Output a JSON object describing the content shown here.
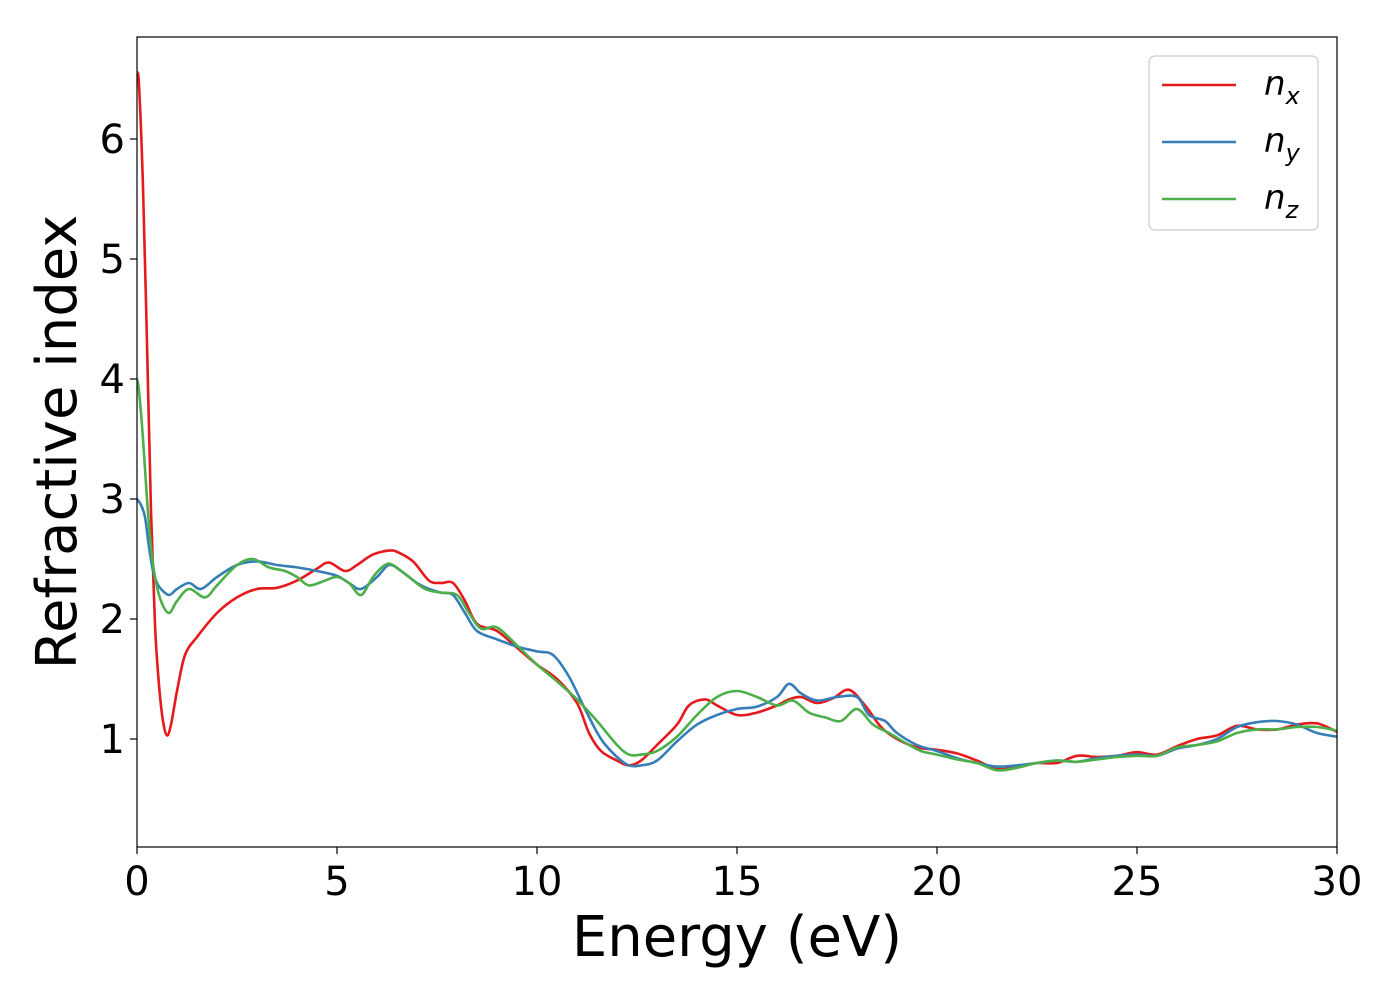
{
  "chart_data": {
    "type": "line",
    "xlabel": "Energy (eV)",
    "ylabel": "Refractive index",
    "xlim": [
      0,
      30
    ],
    "ylim": [
      0.1,
      6.85
    ],
    "xticks": [
      0,
      5,
      10,
      15,
      20,
      25,
      30
    ],
    "yticks": [
      1,
      2,
      3,
      4,
      5,
      6
    ],
    "xtick_labels": [
      "0",
      "5",
      "10",
      "15",
      "20",
      "25",
      "30"
    ],
    "ytick_labels": [
      "1",
      "2",
      "3",
      "4",
      "5",
      "6"
    ],
    "grid": false,
    "legend_position": "top-right",
    "series": [
      {
        "name": "n_x",
        "label_main": "n",
        "label_sub": "x",
        "color": "#e41a1c",
        "x": [
          0,
          0.05,
          0.15,
          0.25,
          0.35,
          0.45,
          0.55,
          0.65,
          0.75,
          0.85,
          1.0,
          1.2,
          1.5,
          2.0,
          2.5,
          3.0,
          3.5,
          4.0,
          4.5,
          4.8,
          5.2,
          5.5,
          5.8,
          6.0,
          6.3,
          6.5,
          6.9,
          7.3,
          7.6,
          7.9,
          8.2,
          8.5,
          9.0,
          9.5,
          10.0,
          10.5,
          11.0,
          11.3,
          11.6,
          12.0,
          12.3,
          12.6,
          13.0,
          13.5,
          13.8,
          14.2,
          14.5,
          15.0,
          15.5,
          16.0,
          16.3,
          16.6,
          17.0,
          17.4,
          17.8,
          18.2,
          18.6,
          19.0,
          19.5,
          20.0,
          20.5,
          21.0,
          21.5,
          22.0,
          22.5,
          23.0,
          23.5,
          24.0,
          24.5,
          25.0,
          25.5,
          26.0,
          26.5,
          27.0,
          27.5,
          28.0,
          28.5,
          29.0,
          29.5,
          30.0
        ],
        "values": [
          6.55,
          6.45,
          5.6,
          4.3,
          2.9,
          1.95,
          1.45,
          1.15,
          1.03,
          1.12,
          1.4,
          1.7,
          1.85,
          2.05,
          2.18,
          2.25,
          2.26,
          2.32,
          2.42,
          2.47,
          2.4,
          2.45,
          2.52,
          2.55,
          2.57,
          2.56,
          2.48,
          2.32,
          2.3,
          2.3,
          2.15,
          1.96,
          1.9,
          1.76,
          1.62,
          1.5,
          1.3,
          1.05,
          0.9,
          0.82,
          0.78,
          0.82,
          0.95,
          1.12,
          1.28,
          1.33,
          1.28,
          1.2,
          1.22,
          1.28,
          1.33,
          1.35,
          1.3,
          1.34,
          1.41,
          1.28,
          1.1,
          1.0,
          0.93,
          0.91,
          0.88,
          0.82,
          0.75,
          0.77,
          0.8,
          0.8,
          0.86,
          0.85,
          0.86,
          0.89,
          0.87,
          0.94,
          1.0,
          1.03,
          1.11,
          1.08,
          1.08,
          1.12,
          1.13,
          1.06
        ]
      },
      {
        "name": "n_y",
        "label_main": "n",
        "label_sub": "y",
        "color": "#377eb8",
        "x": [
          0,
          0.1,
          0.2,
          0.3,
          0.4,
          0.5,
          0.6,
          0.8,
          1.0,
          1.3,
          1.6,
          2.0,
          2.5,
          3.0,
          3.5,
          4.0,
          4.5,
          5.0,
          5.3,
          5.6,
          6.0,
          6.3,
          6.6,
          7.0,
          7.3,
          7.6,
          7.9,
          8.2,
          8.5,
          9.0,
          9.5,
          10.0,
          10.4,
          10.8,
          11.2,
          11.6,
          12.0,
          12.3,
          12.6,
          13.0,
          13.5,
          14.0,
          14.5,
          15.0,
          15.5,
          16.0,
          16.3,
          16.6,
          17.0,
          17.5,
          18.0,
          18.3,
          18.7,
          19.0,
          19.5,
          20.0,
          20.5,
          21.0,
          21.5,
          22.0,
          22.5,
          23.0,
          23.5,
          24.0,
          24.5,
          25.0,
          25.5,
          26.0,
          26.5,
          27.0,
          27.5,
          28.0,
          28.5,
          29.0,
          29.5,
          30.0
        ],
        "values": [
          3.0,
          2.95,
          2.85,
          2.6,
          2.4,
          2.3,
          2.25,
          2.2,
          2.25,
          2.3,
          2.25,
          2.35,
          2.45,
          2.48,
          2.45,
          2.43,
          2.4,
          2.36,
          2.3,
          2.25,
          2.35,
          2.45,
          2.4,
          2.3,
          2.25,
          2.22,
          2.2,
          2.05,
          1.9,
          1.83,
          1.77,
          1.73,
          1.7,
          1.52,
          1.25,
          1.0,
          0.85,
          0.78,
          0.78,
          0.82,
          0.98,
          1.12,
          1.2,
          1.25,
          1.27,
          1.35,
          1.46,
          1.38,
          1.32,
          1.35,
          1.35,
          1.2,
          1.15,
          1.05,
          0.95,
          0.9,
          0.84,
          0.8,
          0.77,
          0.78,
          0.8,
          0.82,
          0.81,
          0.84,
          0.86,
          0.87,
          0.86,
          0.92,
          0.95,
          1.0,
          1.1,
          1.14,
          1.15,
          1.12,
          1.05,
          1.02
        ]
      },
      {
        "name": "n_z",
        "label_main": "n",
        "label_sub": "z",
        "color": "#4daf4a",
        "x": [
          0,
          0.05,
          0.15,
          0.25,
          0.35,
          0.45,
          0.6,
          0.8,
          1.0,
          1.3,
          1.7,
          2.0,
          2.5,
          2.9,
          3.3,
          3.7,
          4.0,
          4.3,
          4.7,
          5.0,
          5.3,
          5.6,
          5.9,
          6.2,
          6.4,
          6.8,
          7.2,
          7.6,
          8.0,
          8.3,
          8.6,
          9.0,
          9.5,
          10.0,
          10.5,
          11.0,
          11.5,
          12.0,
          12.3,
          12.6,
          13.0,
          13.5,
          14.0,
          14.5,
          15.0,
          15.5,
          16.0,
          16.4,
          16.8,
          17.2,
          17.6,
          18.0,
          18.4,
          18.8,
          19.2,
          19.6,
          20.0,
          20.5,
          21.0,
          21.5,
          22.0,
          22.5,
          23.0,
          23.5,
          24.0,
          24.5,
          25.0,
          25.5,
          26.0,
          26.5,
          27.0,
          27.5,
          28.0,
          28.5,
          29.0,
          29.5,
          30.0
        ],
        "values": [
          4.0,
          3.9,
          3.5,
          3.0,
          2.6,
          2.35,
          2.15,
          2.05,
          2.15,
          2.25,
          2.18,
          2.28,
          2.45,
          2.5,
          2.43,
          2.4,
          2.35,
          2.28,
          2.32,
          2.35,
          2.3,
          2.2,
          2.35,
          2.45,
          2.45,
          2.35,
          2.25,
          2.22,
          2.2,
          2.05,
          1.92,
          1.93,
          1.78,
          1.62,
          1.48,
          1.33,
          1.15,
          0.95,
          0.87,
          0.87,
          0.9,
          1.02,
          1.2,
          1.35,
          1.4,
          1.35,
          1.28,
          1.32,
          1.22,
          1.18,
          1.15,
          1.25,
          1.12,
          1.05,
          0.97,
          0.9,
          0.87,
          0.83,
          0.8,
          0.74,
          0.76,
          0.8,
          0.82,
          0.81,
          0.83,
          0.85,
          0.86,
          0.86,
          0.93,
          0.95,
          0.98,
          1.05,
          1.08,
          1.08,
          1.1,
          1.1,
          1.07
        ]
      }
    ]
  }
}
